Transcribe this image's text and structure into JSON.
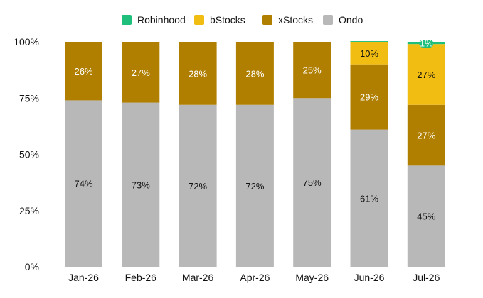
{
  "chart_data": {
    "type": "bar",
    "stacked": true,
    "categories": [
      "Jan-26",
      "Feb-26",
      "Mar-26",
      "Apr-26",
      "May-26",
      "Jun-26",
      "Jul-26"
    ],
    "series": [
      {
        "name": "Ondo",
        "color": "#b8b8b8",
        "label_color": "#111111",
        "values": [
          74,
          73,
          72,
          72,
          75,
          61,
          45
        ]
      },
      {
        "name": "xStocks",
        "color": "#b07f00",
        "label_color": "#ffffff",
        "values": [
          26,
          27,
          28,
          28,
          25,
          29,
          27
        ]
      },
      {
        "name": "bStocks",
        "color": "#f2bd12",
        "label_color": "#111111",
        "values": [
          0,
          0,
          0,
          0,
          0,
          10,
          27
        ]
      },
      {
        "name": "Robinhood",
        "color": "#1dbf7a",
        "label_color": "#ffffff",
        "values": [
          0,
          0,
          0,
          0,
          0,
          0.3,
          1
        ]
      }
    ],
    "data_labels": [
      [
        "74%",
        "73%",
        "72%",
        "72%",
        "75%",
        "61%",
        "45%"
      ],
      [
        "26%",
        "27%",
        "28%",
        "28%",
        "25%",
        "29%",
        "27%"
      ],
      [
        "",
        "",
        "",
        "",
        "",
        "10%",
        "27%"
      ],
      [
        "",
        "",
        "",
        "",
        "",
        "",
        "1%"
      ]
    ],
    "legend": {
      "position": "top-center",
      "order": [
        "Robinhood",
        "bStocks",
        "xStocks",
        "Ondo"
      ]
    },
    "y_ticks": [
      "0%",
      "25%",
      "50%",
      "75%",
      "100%"
    ],
    "ylim": [
      0,
      100
    ],
    "grid": false
  }
}
